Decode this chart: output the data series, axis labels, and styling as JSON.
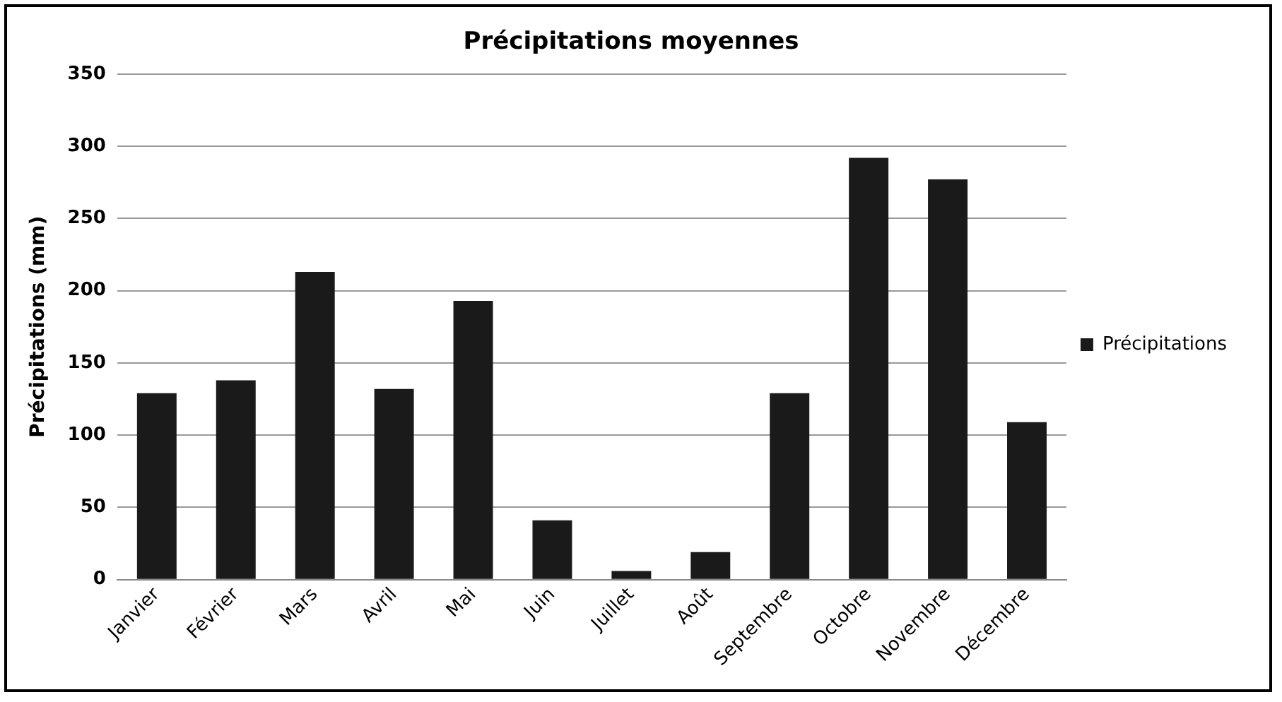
{
  "chart_data": {
    "type": "bar",
    "title": "Précipitations moyennes",
    "ylabel": "Précipitations (mm)",
    "categories": [
      "Janvier",
      "Février",
      "Mars",
      "Avril",
      "Mai",
      "Juin",
      "Juillet",
      "Août",
      "Septembre",
      "Octobre",
      "Novembre",
      "Décembre"
    ],
    "series": [
      {
        "name": "Précipitations",
        "color": "#1a1a1a",
        "values": [
          129,
          138,
          213,
          132,
          193,
          41,
          6,
          19,
          129,
          292,
          277,
          109
        ]
      }
    ],
    "ylim": [
      0,
      350
    ],
    "yticks": [
      0,
      50,
      100,
      150,
      200,
      250,
      300,
      350
    ],
    "grid": "y",
    "legend": "right"
  }
}
